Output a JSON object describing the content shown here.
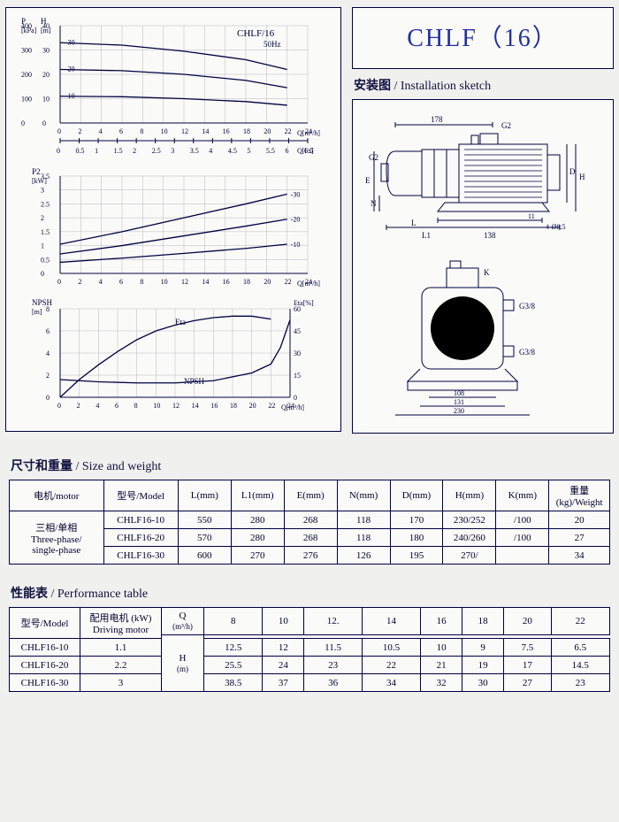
{
  "title": "CHLF（16）",
  "chart_panel": {
    "ph_chart": {
      "type": "line",
      "title": "CHLF/16",
      "subtitle": "50Hz",
      "p_axis": {
        "label": "P",
        "unit": "[kPa]",
        "ticks": [
          0,
          100,
          200,
          300,
          400
        ],
        "lim": [
          0,
          400
        ]
      },
      "h_axis": {
        "label": "H",
        "unit": "[m]",
        "ticks": [
          0,
          10,
          20,
          30,
          40
        ],
        "lim": [
          0,
          40
        ]
      },
      "x_axis_top": {
        "unit": "Q[m³/h]",
        "ticks": [
          0,
          2,
          4,
          6,
          8,
          10,
          12,
          14,
          16,
          18,
          20,
          22,
          24
        ],
        "lim": [
          0,
          24
        ]
      },
      "x_axis_bot": {
        "unit": "Q[l/s]",
        "ticks": [
          0,
          0.5,
          1,
          1.5,
          2,
          2.5,
          3,
          3.5,
          4,
          4.5,
          5,
          5.5,
          6,
          6.5
        ],
        "lim": [
          0,
          6.5
        ]
      },
      "series": [
        {
          "label": "-30",
          "points": [
            [
              0,
              33
            ],
            [
              6,
              32
            ],
            [
              12,
              29.5
            ],
            [
              18,
              26
            ],
            [
              22,
              22
            ]
          ]
        },
        {
          "label": "-20",
          "points": [
            [
              0,
              22
            ],
            [
              6,
              21.5
            ],
            [
              12,
              20
            ],
            [
              18,
              17.5
            ],
            [
              22,
              14.5
            ]
          ]
        },
        {
          "label": "-10",
          "points": [
            [
              0,
              11
            ],
            [
              6,
              10.8
            ],
            [
              12,
              10
            ],
            [
              18,
              8.8
            ],
            [
              22,
              7.3
            ]
          ]
        }
      ],
      "grid_color": "#b8b8c0",
      "line_color": "#000040"
    },
    "p2_chart": {
      "type": "line",
      "y_axis": {
        "label": "P2",
        "unit": "[kW]",
        "ticks": [
          0,
          0.5,
          1,
          1.5,
          2,
          2.5,
          3,
          3.5
        ],
        "lim": [
          0,
          3.5
        ]
      },
      "x_axis": {
        "unit": "Q[m³/h]",
        "ticks": [
          0,
          2,
          4,
          6,
          8,
          10,
          12,
          14,
          16,
          18,
          20,
          22,
          24
        ],
        "lim": [
          0,
          24
        ]
      },
      "series": [
        {
          "label": "-30",
          "points": [
            [
              0,
              1.05
            ],
            [
              6,
              1.5
            ],
            [
              12,
              2.0
            ],
            [
              18,
              2.5
            ],
            [
              22,
              2.85
            ]
          ]
        },
        {
          "label": "-20",
          "points": [
            [
              0,
              0.7
            ],
            [
              6,
              1.0
            ],
            [
              12,
              1.35
            ],
            [
              18,
              1.7
            ],
            [
              22,
              1.95
            ]
          ]
        },
        {
          "label": "-10",
          "points": [
            [
              0,
              0.4
            ],
            [
              6,
              0.55
            ],
            [
              12,
              0.72
            ],
            [
              18,
              0.9
            ],
            [
              22,
              1.05
            ]
          ]
        }
      ],
      "grid_color": "#b8b8c0",
      "line_color": "#000040"
    },
    "npsh_chart": {
      "type": "line",
      "y_left": {
        "label": "NPSH",
        "unit": "[m]",
        "ticks": [
          0,
          2,
          4,
          6,
          8
        ],
        "lim": [
          0,
          8
        ]
      },
      "y_right": {
        "label": "Eta[%]",
        "ticks": [
          0,
          15,
          30,
          45,
          60
        ],
        "lim": [
          0,
          60
        ]
      },
      "x_axis": {
        "unit": "Q[m³/h]",
        "ticks": [
          0,
          2,
          4,
          6,
          8,
          10,
          12,
          14,
          16,
          18,
          20,
          22,
          24
        ],
        "lim": [
          0,
          24
        ]
      },
      "eta_label": "Eta",
      "npsh_label": "NPSH",
      "eta_curve": [
        [
          0,
          0
        ],
        [
          2,
          12
        ],
        [
          4,
          22
        ],
        [
          6,
          31
        ],
        [
          8,
          39
        ],
        [
          10,
          45
        ],
        [
          12,
          49
        ],
        [
          14,
          52
        ],
        [
          16,
          54
        ],
        [
          18,
          55
        ],
        [
          20,
          55
        ],
        [
          22,
          53
        ]
      ],
      "npsh_curve": [
        [
          0,
          1.6
        ],
        [
          4,
          1.4
        ],
        [
          8,
          1.3
        ],
        [
          12,
          1.3
        ],
        [
          16,
          1.5
        ],
        [
          20,
          2.2
        ],
        [
          22,
          3.0
        ],
        [
          23,
          4.5
        ],
        [
          24,
          7.0
        ]
      ],
      "grid_color": "#b8b8c0",
      "line_color": "#000040"
    }
  },
  "install": {
    "heading_cn": "安装图",
    "heading_en": "Installation sketch",
    "dims": {
      "top178": "178",
      "G2": "G2",
      "G2_left": "G2",
      "E": "E",
      "N": "N",
      "L": "L",
      "L1": "L1",
      "L1_138": "138",
      "L1_11": "11",
      "holes": "4-Ø8.5",
      "H": "H",
      "D": "D",
      "K": "K",
      "G38a": "G3/8",
      "G38b": "G3/8",
      "d108": "108",
      "d131": "131",
      "d230": "230"
    }
  },
  "size_table": {
    "heading_cn": "尺寸和重量",
    "heading_en": "Size and weight",
    "headers": [
      "电机/motor",
      "型号/Model",
      "L(mm)",
      "L1(mm)",
      "E(mm)",
      "N(mm)",
      "D(mm)",
      "H(mm)",
      "K(mm)",
      "重量(kg)/Weight"
    ],
    "motor_group": [
      "三相/单相",
      "Three-phase/",
      "single-phase"
    ],
    "rows": [
      [
        "CHLF16-10",
        "550",
        "280",
        "268",
        "118",
        "170",
        "230/252",
        "/100",
        "20"
      ],
      [
        "CHLF16-20",
        "570",
        "280",
        "268",
        "118",
        "180",
        "240/260",
        "/100",
        "27"
      ],
      [
        "CHLF16-30",
        "600",
        "270",
        "276",
        "126",
        "195",
        "270/",
        "",
        "34"
      ]
    ]
  },
  "perf_table": {
    "heading_cn": "性能表",
    "heading_en": "Performance table",
    "col_model": "型号/Model",
    "col_motor": [
      "配用电机 (kW)",
      "Driving motor"
    ],
    "col_q": "Q",
    "q_unit": "(m³/h)",
    "h_label": "H",
    "h_unit": "(m)",
    "q_values": [
      "8",
      "10",
      "12.",
      "14",
      "16",
      "18",
      "20",
      "22"
    ],
    "rows": [
      {
        "model": "CHLF16-10",
        "kw": "1.1",
        "h": [
          "12.5",
          "12",
          "11.5",
          "10.5",
          "10",
          "9",
          "7.5",
          "6.5"
        ]
      },
      {
        "model": "CHLF16-20",
        "kw": "2.2",
        "h": [
          "25.5",
          "24",
          "23",
          "22",
          "21",
          "19",
          "17",
          "14.5"
        ]
      },
      {
        "model": "CHLF16-30",
        "kw": "3",
        "h": [
          "38.5",
          "37",
          "36",
          "34",
          "32",
          "30",
          "27",
          "23"
        ]
      }
    ]
  },
  "colors": {
    "border": "#000040",
    "grid": "#b8b8c0",
    "title": "#2030a0",
    "bg": "#fafaf8"
  }
}
